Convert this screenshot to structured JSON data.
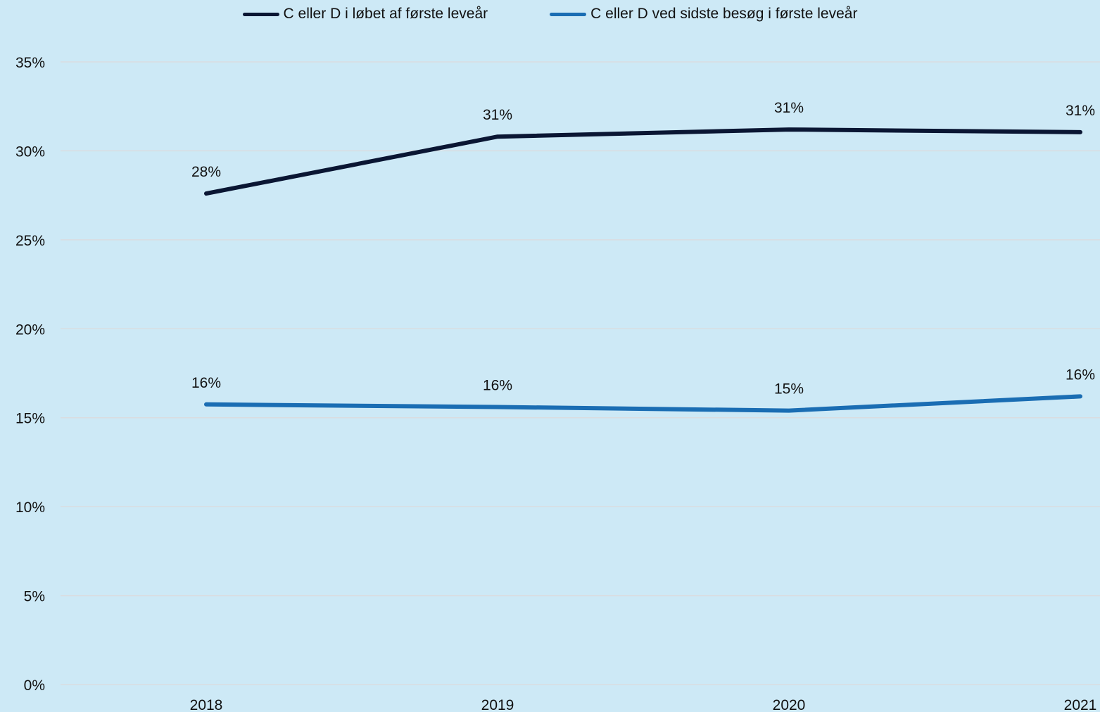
{
  "chart_data": {
    "type": "line",
    "categories": [
      "2018",
      "2019",
      "2020",
      "2021"
    ],
    "series": [
      {
        "name": "C eller D i løbet af første leveår",
        "values": [
          27.6,
          30.8,
          31.2,
          31.05
        ],
        "labels": [
          "28%",
          "31%",
          "31%",
          "31%"
        ],
        "color": "#0a1633"
      },
      {
        "name": "C eller D ved sidste besøg i første leveår",
        "values": [
          15.75,
          15.6,
          15.4,
          16.2
        ],
        "labels": [
          "16%",
          "16%",
          "15%",
          "16%"
        ],
        "color": "#1a6db3"
      }
    ],
    "ylim": [
      0,
      35
    ],
    "y_ticks": [
      0,
      5,
      10,
      15,
      20,
      25,
      30,
      35
    ],
    "y_tick_labels": [
      "0%",
      "5%",
      "10%",
      "15%",
      "20%",
      "25%",
      "30%",
      "35%"
    ],
    "grid": true,
    "legend": "top-center",
    "background": "#cde9f6",
    "gridline_color": "#d9dde0"
  }
}
